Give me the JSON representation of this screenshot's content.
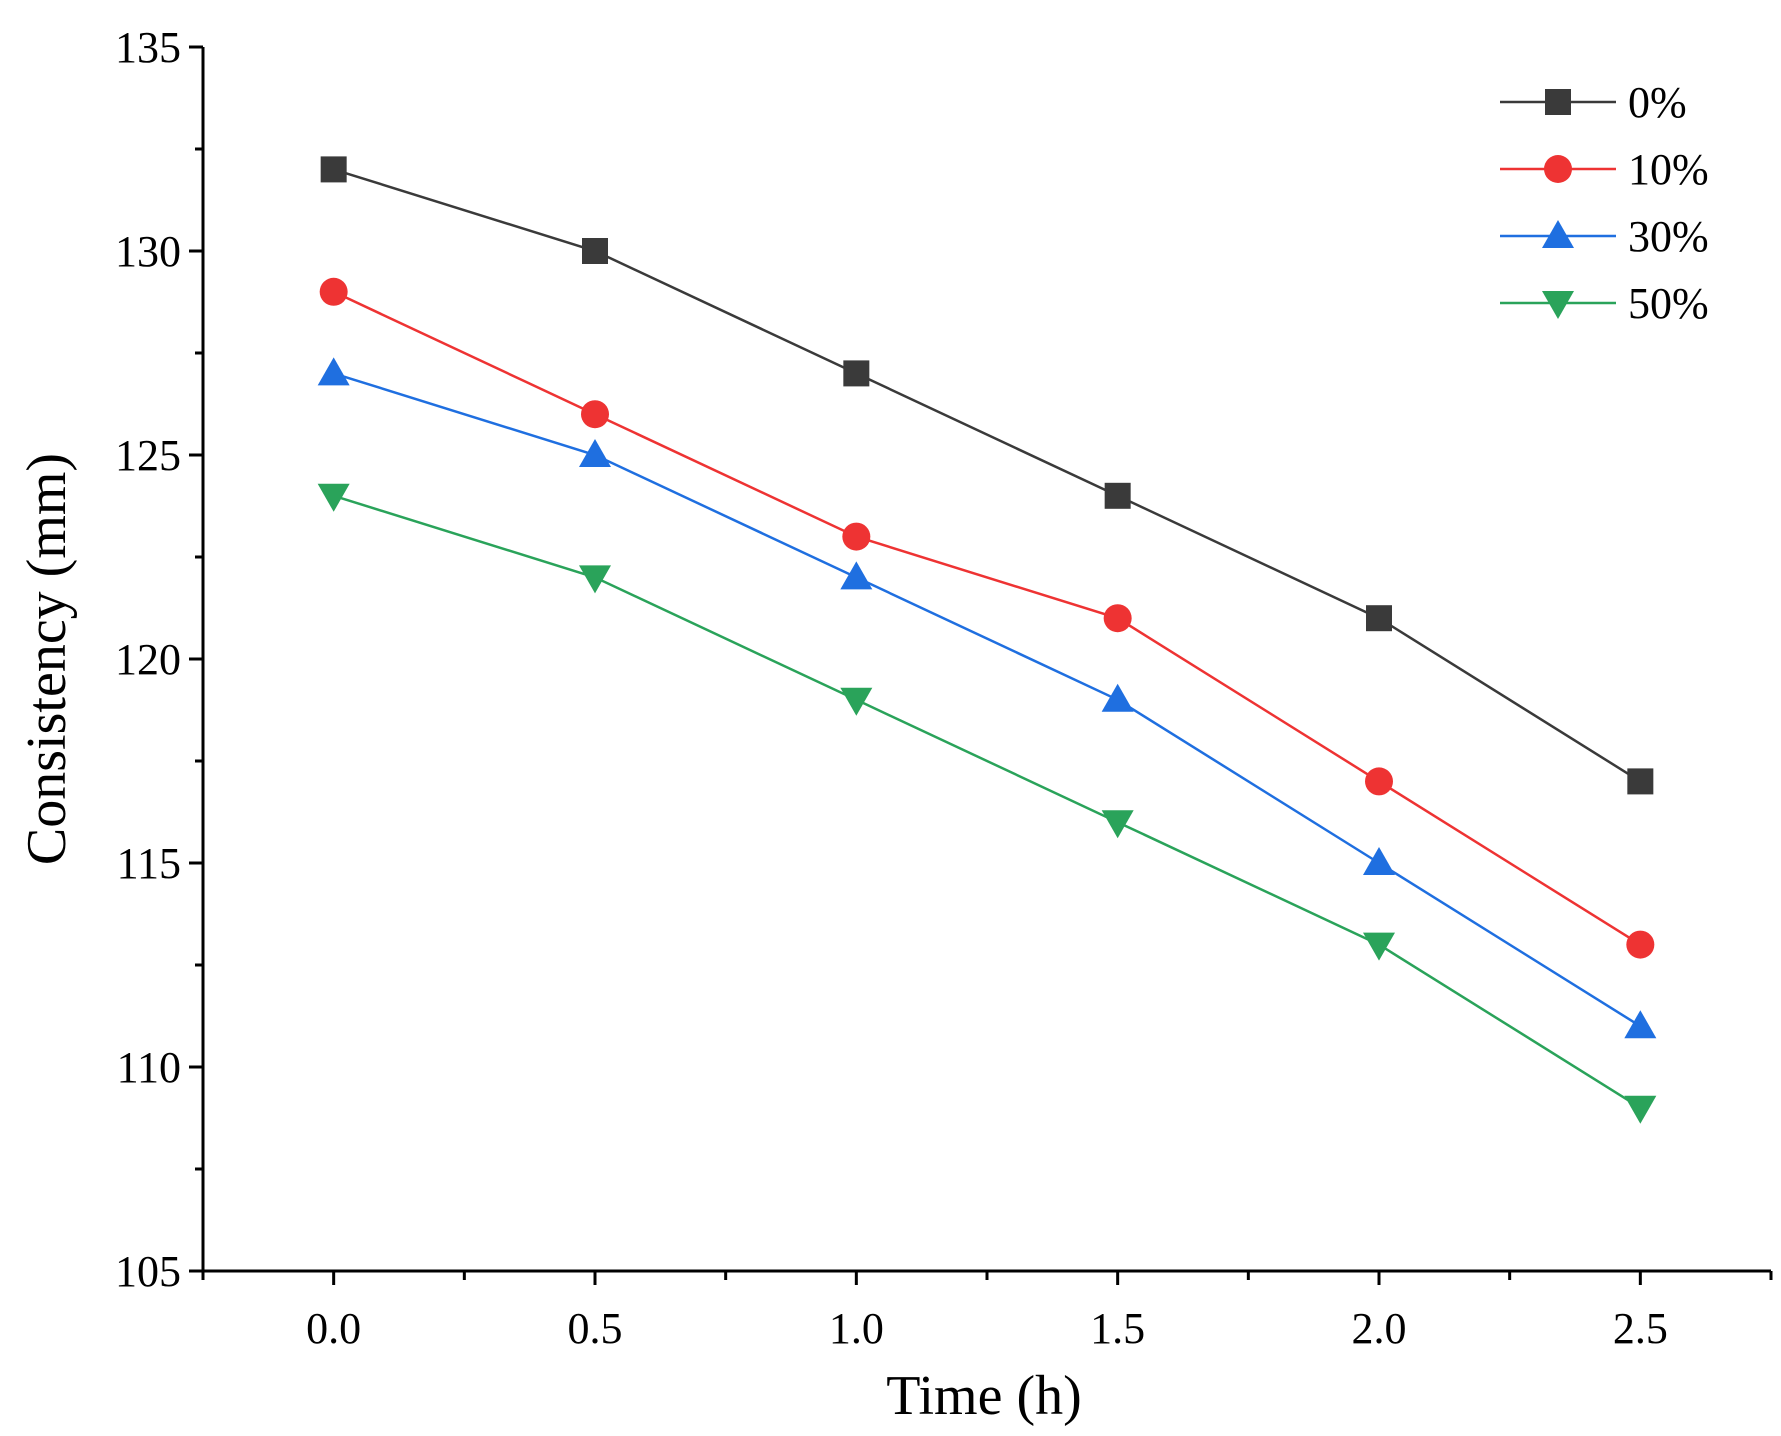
{
  "chart_data": {
    "type": "line",
    "title": "",
    "xlabel": "Time (h)",
    "ylabel": "Consistency (mm)",
    "xlim": [
      -0.25,
      2.75
    ],
    "ylim": [
      105,
      135
    ],
    "x_ticks": [
      0.0,
      0.5,
      1.0,
      1.5,
      2.0,
      2.5
    ],
    "x_tick_labels": [
      "0.0",
      "0.5",
      "1.0",
      "1.5",
      "2.0",
      "2.5"
    ],
    "y_ticks": [
      105,
      110,
      115,
      120,
      125,
      130,
      135
    ],
    "y_tick_labels": [
      "105",
      "110",
      "115",
      "120",
      "125",
      "130",
      "135"
    ],
    "x": [
      0.0,
      0.5,
      1.0,
      1.5,
      2.0,
      2.5
    ],
    "grid": false,
    "legend_position": "top-right",
    "series": [
      {
        "name": "0%",
        "color": "#3a3a3a",
        "marker": "square",
        "values": [
          132,
          130,
          127,
          124,
          121,
          117
        ]
      },
      {
        "name": "10%",
        "color": "#ee3333",
        "marker": "circle",
        "values": [
          129,
          126,
          123,
          121,
          117,
          113
        ]
      },
      {
        "name": "30%",
        "color": "#1f6fe0",
        "marker": "triangle-up",
        "values": [
          127,
          125,
          122,
          119,
          115,
          111
        ]
      },
      {
        "name": "50%",
        "color": "#2aa35a",
        "marker": "triangle-down",
        "values": [
          124,
          122,
          119,
          116,
          113,
          109
        ]
      }
    ]
  }
}
